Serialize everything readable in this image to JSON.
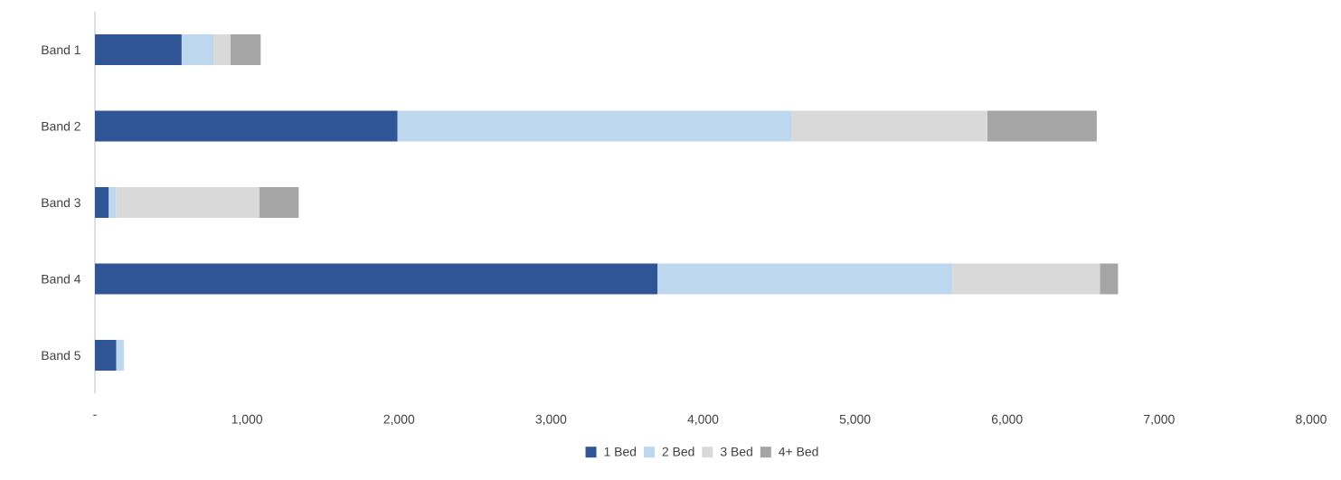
{
  "chart_data": {
    "type": "bar",
    "orientation": "horizontal",
    "stacked": true,
    "categories": [
      "Band 1",
      "Band 2",
      "Band 3",
      "Band 4",
      "Band 5"
    ],
    "series": [
      {
        "name": "1 Bed",
        "color": "#2f5597",
        "values": [
          570,
          1990,
          90,
          3700,
          140
        ]
      },
      {
        "name": "2 Bed",
        "color": "#bdd7ee",
        "values": [
          210,
          2590,
          50,
          1940,
          50
        ]
      },
      {
        "name": "3 Bed",
        "color": "#d9d9d9",
        "values": [
          110,
          1290,
          940,
          970,
          0
        ]
      },
      {
        "name": "4+ Bed",
        "color": "#a5a5a5",
        "values": [
          200,
          720,
          260,
          120,
          0
        ]
      }
    ],
    "xlim": [
      0,
      8000
    ],
    "xticks": [
      {
        "value": 0,
        "label": "-"
      },
      {
        "value": 1000,
        "label": "1,000"
      },
      {
        "value": 2000,
        "label": "2,000"
      },
      {
        "value": 3000,
        "label": "3,000"
      },
      {
        "value": 4000,
        "label": "4,000"
      },
      {
        "value": 5000,
        "label": "5,000"
      },
      {
        "value": 6000,
        "label": "6,000"
      },
      {
        "value": 7000,
        "label": "7,000"
      },
      {
        "value": 8000,
        "label": "8,000"
      }
    ],
    "grid": false,
    "legend": "bottom"
  }
}
